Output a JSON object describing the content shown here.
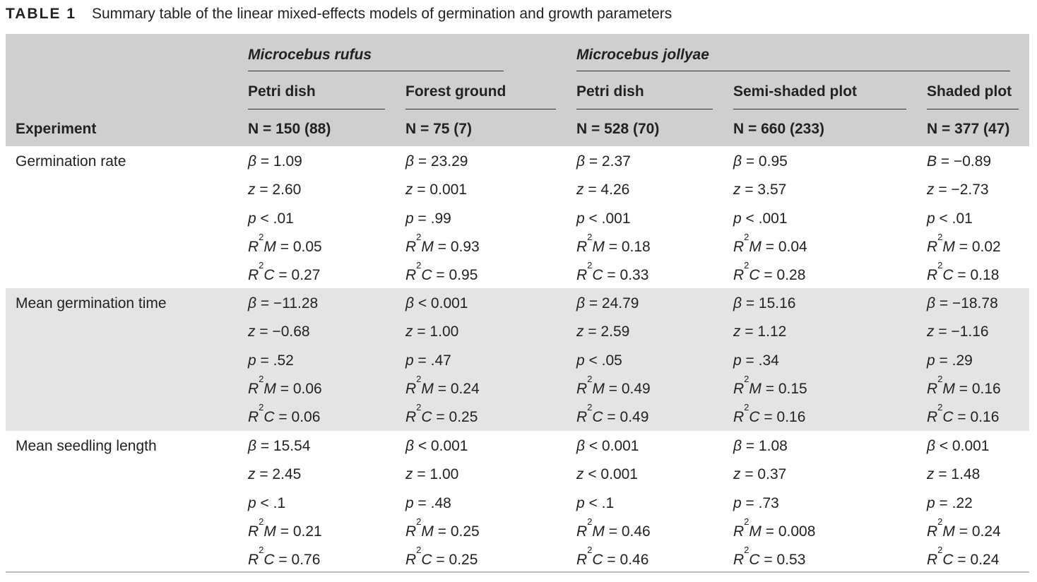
{
  "caption": {
    "label": "TABLE 1",
    "text": "Summary table of the linear mixed-effects models of germination and growth parameters"
  },
  "header": {
    "experiment_label": "Experiment",
    "species": [
      "Microcebus rufus",
      "Microcebus jollyae"
    ],
    "columns": [
      {
        "name": "Petri dish",
        "n": "N = 150 (88)"
      },
      {
        "name": "Forest ground",
        "n": "N = 75 (7)"
      },
      {
        "name": "Petri dish",
        "n": "N = 528 (70)"
      },
      {
        "name": "Semi-shaded plot",
        "n": "N = 660 (233)"
      },
      {
        "name": "Shaded plot",
        "n": "N = 377 (47)"
      }
    ]
  },
  "rows": [
    {
      "label": "Germination rate",
      "cols": [
        [
          {
            "sym": "β",
            "val": " = 1.09"
          },
          {
            "sym": "z",
            "val": " = 2.60"
          },
          {
            "sym": "p",
            "val": " < .01"
          },
          {
            "sym": "R",
            "sup": "2",
            "sym2": "M",
            "val": " = 0.05"
          },
          {
            "sym": "R",
            "sup": "2",
            "sym2": "C",
            "val": " = 0.27"
          }
        ],
        [
          {
            "sym": "β",
            "val": " = 23.29"
          },
          {
            "sym": "z",
            "val": " = 0.001"
          },
          {
            "sym": "p",
            "val": " = .99"
          },
          {
            "sym": "R",
            "sup": "2",
            "sym2": "M",
            "val": " = 0.93"
          },
          {
            "sym": "R",
            "sup": "2",
            "sym2": "C",
            "val": " = 0.95"
          }
        ],
        [
          {
            "sym": "β",
            "val": " = 2.37"
          },
          {
            "sym": "z",
            "val": " = 4.26"
          },
          {
            "sym": "p",
            "val": " < .001"
          },
          {
            "sym": "R",
            "sup": "2",
            "sym2": "M",
            "val": " = 0.18"
          },
          {
            "sym": "R",
            "sup": "2",
            "sym2": "C",
            "val": " = 0.33"
          }
        ],
        [
          {
            "sym": "β",
            "val": " = 0.95"
          },
          {
            "sym": "z",
            "val": " = 3.57"
          },
          {
            "sym": "p",
            "val": " < .001"
          },
          {
            "sym": "R",
            "sup": "2",
            "sym2": "M",
            "val": " = 0.04"
          },
          {
            "sym": "R",
            "sup": "2",
            "sym2": "C",
            "val": " = 0.28"
          }
        ],
        [
          {
            "sym": "B",
            "val": " = −0.89"
          },
          {
            "sym": "z",
            "val": " = −2.73"
          },
          {
            "sym": "p",
            "val": " < .01"
          },
          {
            "sym": "R",
            "sup": "2",
            "sym2": "M",
            "val": " = 0.02"
          },
          {
            "sym": "R",
            "sup": "2",
            "sym2": "C",
            "val": " = 0.18"
          }
        ]
      ]
    },
    {
      "label": "Mean germination time",
      "cols": [
        [
          {
            "sym": "β",
            "val": " = −11.28"
          },
          {
            "sym": "z",
            "val": " = −0.68"
          },
          {
            "sym": "p",
            "val": " = .52"
          },
          {
            "sym": "R",
            "sup": "2",
            "sym2": "M",
            "val": " = 0.06"
          },
          {
            "sym": "R",
            "sup": "2",
            "sym2": "C",
            "val": " = 0.06"
          }
        ],
        [
          {
            "sym": "β",
            "val": " < 0.001"
          },
          {
            "sym": "z",
            "val": " = 1.00"
          },
          {
            "sym": "p",
            "val": " = .47"
          },
          {
            "sym": "R",
            "sup": "2",
            "sym2": "M",
            "val": " = 0.24"
          },
          {
            "sym": "R",
            "sup": "2",
            "sym2": "C",
            "val": " = 0.25"
          }
        ],
        [
          {
            "sym": "β",
            "val": " = 24.79"
          },
          {
            "sym": "z",
            "val": " = 2.59"
          },
          {
            "sym": "p",
            "val": " < .05"
          },
          {
            "sym": "R",
            "sup": "2",
            "sym2": "M",
            "val": " = 0.49"
          },
          {
            "sym": "R",
            "sup": "2",
            "sym2": "C",
            "val": " = 0.49"
          }
        ],
        [
          {
            "sym": "β",
            "val": " = 15.16"
          },
          {
            "sym": "z",
            "val": " = 1.12"
          },
          {
            "sym": "p",
            "val": " = .34"
          },
          {
            "sym": "R",
            "sup": "2",
            "sym2": "M",
            "val": " = 0.15"
          },
          {
            "sym": "R",
            "sup": "2",
            "sym2": "C",
            "val": " = 0.16"
          }
        ],
        [
          {
            "sym": "β",
            "val": " = −18.78"
          },
          {
            "sym": "z",
            "val": " = −1.16"
          },
          {
            "sym": "p",
            "val": " = .29"
          },
          {
            "sym": "R",
            "sup": "2",
            "sym2": "M",
            "val": " = 0.16"
          },
          {
            "sym": "R",
            "sup": "2",
            "sym2": "C",
            "val": " = 0.16"
          }
        ]
      ]
    },
    {
      "label": "Mean seedling length",
      "cols": [
        [
          {
            "sym": "β",
            "val": " = 15.54"
          },
          {
            "sym": "z",
            "val": " = 2.45"
          },
          {
            "sym": "p",
            "val": " < .1"
          },
          {
            "sym": "R",
            "sup": "2",
            "sym2": "M",
            "val": " = 0.21"
          },
          {
            "sym": "R",
            "sup": "2",
            "sym2": "C",
            "val": " = 0.76"
          }
        ],
        [
          {
            "sym": "β",
            "val": " < 0.001"
          },
          {
            "sym": "z",
            "val": " = 1.00"
          },
          {
            "sym": "p",
            "val": " = .48"
          },
          {
            "sym": "R",
            "sup": "2",
            "sym2": "M",
            "val": " = 0.25"
          },
          {
            "sym": "R",
            "sup": "2",
            "sym2": "C",
            "val": " = 0.25"
          }
        ],
        [
          {
            "sym": "β",
            "val": " < 0.001"
          },
          {
            "sym": "z",
            "val": " < 0.001"
          },
          {
            "sym": "p",
            "val": " < .1"
          },
          {
            "sym": "R",
            "sup": "2",
            "sym2": "M",
            "val": " = 0.46"
          },
          {
            "sym": "R",
            "sup": "2",
            "sym2": "C",
            "val": " = 0.46"
          }
        ],
        [
          {
            "sym": "β",
            "val": " = 1.08"
          },
          {
            "sym": "z",
            "val": " = 0.37"
          },
          {
            "sym": "p",
            "val": " = .73"
          },
          {
            "sym": "R",
            "sup": "2",
            "sym2": "M",
            "val": " = 0.008"
          },
          {
            "sym": "R",
            "sup": "2",
            "sym2": "C",
            "val": " = 0.53"
          }
        ],
        [
          {
            "sym": "β",
            "val": " < 0.001"
          },
          {
            "sym": "z",
            "val": " = 1.48"
          },
          {
            "sym": "p",
            "val": " = .22"
          },
          {
            "sym": "R",
            "sup": "2",
            "sym2": "M",
            "val": " = 0.24"
          },
          {
            "sym": "R",
            "sup": "2",
            "sym2": "C",
            "val": " = 0.24"
          }
        ]
      ]
    }
  ],
  "colors": {
    "header_bg": "#cfcfcf",
    "shade_bg": "#e4e4e4",
    "text": "#222222"
  }
}
